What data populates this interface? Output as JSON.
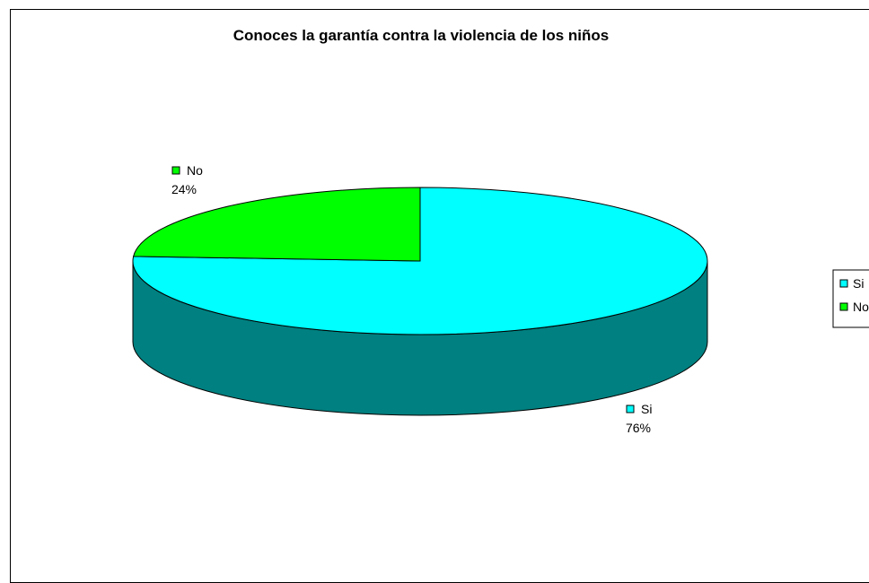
{
  "chart_data": {
    "type": "pie",
    "title": "Conoces la garantía contra la violencia de los niños",
    "categories": [
      "Si",
      "No"
    ],
    "values": [
      76,
      24
    ],
    "data_labels": [
      "76%",
      "24%"
    ],
    "colors": {
      "Si": "#00ffff",
      "Si_side": "#008080",
      "No": "#00ff00",
      "No_side": "#008000"
    },
    "legend": {
      "placement": "right",
      "entries": [
        "Si",
        "No"
      ]
    },
    "style": "3d-pie"
  }
}
